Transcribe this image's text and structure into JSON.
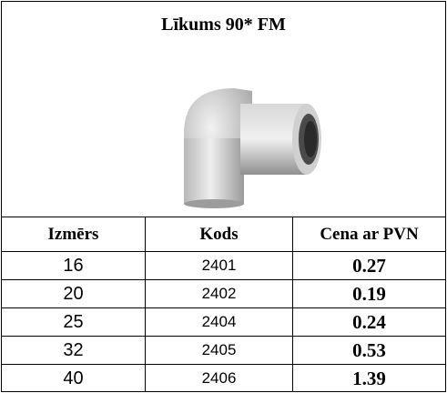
{
  "header": {
    "title": "Līkums 90* FM"
  },
  "table": {
    "columns": [
      "Izmērs",
      "Kods",
      "Cena ar PVN"
    ],
    "rows": [
      [
        "16",
        "2401",
        "0.27"
      ],
      [
        "20",
        "2402",
        "0.19"
      ],
      [
        "25",
        "2404",
        "0.24"
      ],
      [
        "32",
        "2405",
        "0.53"
      ],
      [
        "40",
        "2406",
        "1.39"
      ]
    ]
  }
}
